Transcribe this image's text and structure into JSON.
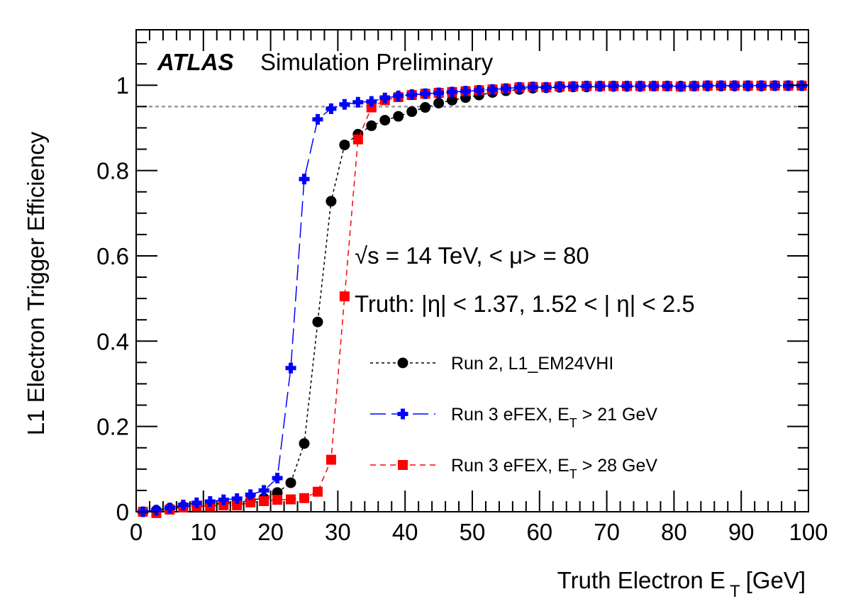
{
  "chart_data": {
    "type": "scatter",
    "title": "",
    "experiment_label": {
      "bold": "ATLAS",
      "plain": "Simulation Preliminary"
    },
    "xlabel": "Truth Electron E",
    "xlabel_sub": "T",
    "xlabel_unit": "[GeV]",
    "ylabel": "L1 Electron Trigger Efficiency",
    "xlim": [
      0,
      100
    ],
    "ylim": [
      0,
      1.13
    ],
    "x_ticks": [
      0,
      10,
      20,
      30,
      40,
      50,
      60,
      70,
      80,
      90,
      100
    ],
    "x_tick_labels": [
      "0",
      "10",
      "20",
      "30",
      "40",
      "50",
      "60",
      "70",
      "80",
      "90",
      "100"
    ],
    "y_ticks": [
      0,
      0.2,
      0.4,
      0.6,
      0.8,
      1
    ],
    "y_tick_labels": [
      "0",
      "0.2",
      "0.4",
      "0.6",
      "0.8",
      "1"
    ],
    "reference_line": {
      "y": 0.95,
      "style": "dotted",
      "color": "#999999"
    },
    "grid": false,
    "annotations": [
      {
        "text": "√s = 14 TeV, < μ> = 80"
      },
      {
        "text": "Truth: |η| < 1.37, 1.52 < | η| < 2.5"
      }
    ],
    "legend_position": "center-right",
    "x": [
      1,
      3,
      5,
      7,
      9,
      11,
      13,
      15,
      17,
      19,
      21,
      23,
      25,
      27,
      29,
      31,
      33,
      35,
      37,
      39,
      41,
      43,
      45,
      47,
      49,
      51,
      53,
      55,
      57,
      59,
      61,
      63,
      65,
      67,
      69,
      71,
      73,
      75,
      77,
      79,
      81,
      83,
      85,
      87,
      89,
      91,
      93,
      95,
      97,
      99
    ],
    "series": [
      {
        "name": "Run 2, L1_EM24VHI",
        "label_main": "Run 2, L1_EM24VHI",
        "label_sub": "",
        "label_tail": "",
        "color": "#000000",
        "marker": "circle",
        "line_style": "dotted",
        "values": [
          0.0,
          0.003,
          0.008,
          0.012,
          0.015,
          0.017,
          0.02,
          0.022,
          0.027,
          0.032,
          0.045,
          0.068,
          0.16,
          0.445,
          0.728,
          0.86,
          0.885,
          0.905,
          0.918,
          0.927,
          0.938,
          0.948,
          0.958,
          0.965,
          0.971,
          0.977,
          0.983,
          0.987,
          0.99,
          0.993,
          0.994,
          0.995,
          0.996,
          0.996,
          0.997,
          0.997,
          0.997,
          0.997,
          0.998,
          0.998,
          0.998,
          0.998,
          0.998,
          0.998,
          0.998,
          0.998,
          0.998,
          0.999,
          0.999,
          0.999
        ]
      },
      {
        "name": "Run 3 eFEX, ET > 21 GeV",
        "label_main": "Run 3 eFEX, E",
        "label_sub": "T",
        "label_tail": " > 21 GeV",
        "color": "#0000ff",
        "marker": "cross",
        "line_style": "long-dash",
        "values": [
          0.0,
          0.004,
          0.009,
          0.016,
          0.021,
          0.024,
          0.028,
          0.031,
          0.04,
          0.05,
          0.079,
          0.337,
          0.78,
          0.92,
          0.945,
          0.955,
          0.96,
          0.962,
          0.97,
          0.975,
          0.978,
          0.98,
          0.982,
          0.984,
          0.986,
          0.988,
          0.99,
          0.992,
          0.995,
          0.996,
          0.995,
          0.997,
          0.997,
          0.998,
          0.998,
          0.998,
          0.998,
          0.998,
          0.998,
          0.998,
          0.997,
          0.998,
          0.999,
          0.999,
          0.999,
          0.999,
          0.999,
          0.999,
          0.999,
          0.999
        ]
      },
      {
        "name": "Run 3 eFEX, ET > 28 GeV",
        "label_main": "Run 3 eFEX, E",
        "label_sub": "T",
        "label_tail": " > 28 GeV",
        "color": "#ff0000",
        "marker": "square",
        "line_style": "dashed",
        "values": [
          0.0,
          -0.003,
          0.005,
          0.01,
          0.013,
          0.013,
          0.015,
          0.015,
          0.022,
          0.025,
          0.028,
          0.029,
          0.032,
          0.047,
          0.122,
          0.505,
          0.873,
          0.948,
          0.965,
          0.972,
          0.977,
          0.98,
          0.982,
          0.984,
          0.986,
          0.988,
          0.99,
          0.992,
          0.995,
          0.996,
          0.995,
          0.997,
          0.997,
          0.998,
          0.998,
          0.998,
          0.998,
          0.998,
          0.998,
          0.998,
          0.997,
          0.998,
          0.999,
          0.999,
          0.999,
          0.999,
          0.999,
          0.999,
          0.999,
          0.999
        ]
      }
    ]
  }
}
